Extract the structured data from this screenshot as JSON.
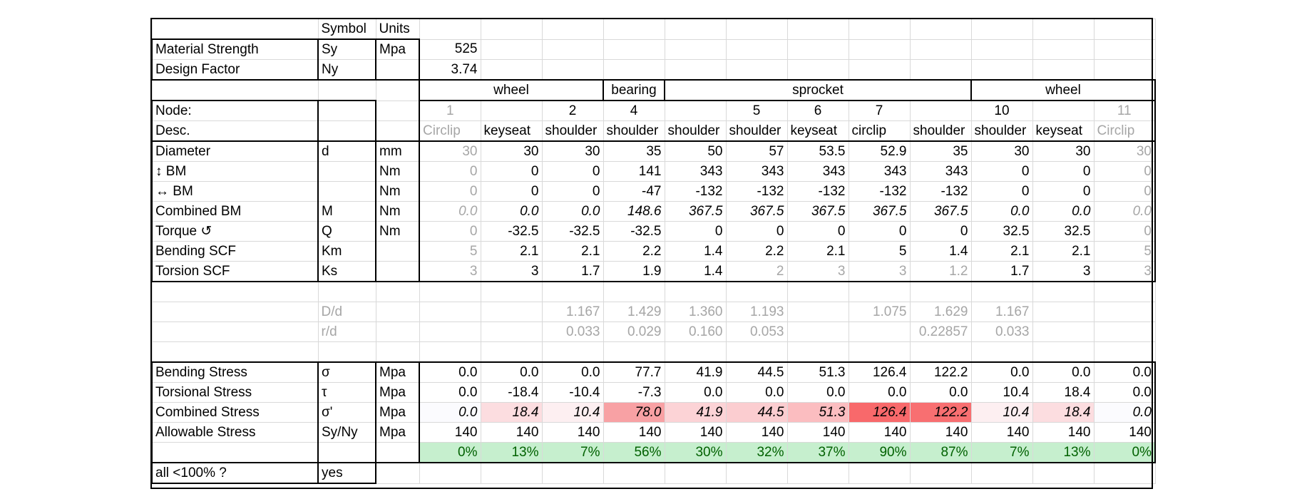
{
  "header": {
    "symbol": "Symbol",
    "units": "Units"
  },
  "material_strength": {
    "label": "Material Strength",
    "symbol": "Sy",
    "units": "Mpa",
    "value": "525"
  },
  "design_factor": {
    "label": "Design Factor",
    "symbol": "Ny",
    "value": "3.74"
  },
  "groups": [
    {
      "label": "wheel",
      "span": 3
    },
    {
      "label": "bearing",
      "span": 1
    },
    {
      "label": "sprocket",
      "span": 5
    },
    {
      "label": "wheel",
      "span": 3
    }
  ],
  "node_label": "Node:",
  "desc_label": "Desc.",
  "nodes": [
    "1",
    "",
    "2",
    "4",
    "",
    "5",
    "6",
    "7",
    "",
    "10",
    "",
    "11"
  ],
  "desc": [
    "Circlip",
    "keyseat",
    "shoulder",
    "shoulder",
    "shoulder",
    "shoulder",
    "keyseat",
    "circlip",
    "shoulder",
    "shoulder",
    "keyseat",
    "Circlip"
  ],
  "rows": [
    {
      "label": "Diameter",
      "symbol": "d",
      "units": "mm",
      "values": [
        "30",
        "30",
        "30",
        "35",
        "50",
        "57",
        "53.5",
        "52.9",
        "35",
        "30",
        "30",
        "30"
      ]
    },
    {
      "label": "↕ BM",
      "symbol": "",
      "units": "Nm",
      "values": [
        "0",
        "0",
        "0",
        "141",
        "343",
        "343",
        "343",
        "343",
        "343",
        "0",
        "0",
        "0"
      ]
    },
    {
      "label": "↔ BM",
      "symbol": "",
      "units": "Nm",
      "values": [
        "0",
        "0",
        "0",
        "-47",
        "-132",
        "-132",
        "-132",
        "-132",
        "-132",
        "0",
        "0",
        "0"
      ]
    },
    {
      "label": "Combined BM",
      "symbol": "M",
      "units": "Nm",
      "values": [
        "0.0",
        "0.0",
        "0.0",
        "148.6",
        "367.5",
        "367.5",
        "367.5",
        "367.5",
        "367.5",
        "0.0",
        "0.0",
        "0.0"
      ]
    },
    {
      "label": "Torque ↺",
      "symbol": "Q",
      "units": "Nm",
      "values": [
        "0",
        "-32.5",
        "-32.5",
        "-32.5",
        "0",
        "0",
        "0",
        "0",
        "0",
        "32.5",
        "32.5",
        "0"
      ]
    },
    {
      "label": "Bending SCF",
      "symbol": "Km",
      "units": "",
      "values": [
        "5",
        "2.1",
        "2.1",
        "2.2",
        "1.4",
        "2.2",
        "2.1",
        "5",
        "1.4",
        "2.1",
        "2.1",
        "5"
      ]
    },
    {
      "label": "Torsion SCF",
      "symbol": "Ks",
      "units": "",
      "values": [
        "3",
        "3",
        "1.7",
        "1.9",
        "1.4",
        "2",
        "3",
        "3",
        "1.2",
        "1.7",
        "3",
        "3"
      ]
    }
  ],
  "ratios": [
    {
      "symbol": "D/d",
      "values": [
        "",
        "",
        "1.167",
        "1.429",
        "1.360",
        "1.193",
        "",
        "1.075",
        "1.629",
        "1.167",
        "",
        ""
      ]
    },
    {
      "symbol": "r/d",
      "values": [
        "",
        "",
        "0.033",
        "0.029",
        "0.160",
        "0.053",
        "",
        "",
        "0.22857",
        "0.033",
        "",
        ""
      ]
    }
  ],
  "stress_rows": [
    {
      "label": "Bending Stress",
      "symbol": "σ",
      "units": "Mpa",
      "values": [
        "0.0",
        "0.0",
        "0.0",
        "77.7",
        "41.9",
        "44.5",
        "51.3",
        "126.4",
        "122.2",
        "0.0",
        "0.0",
        "0.0"
      ]
    },
    {
      "label": "Torsional Stress",
      "symbol": "τ",
      "units": "Mpa",
      "values": [
        "0.0",
        "-18.4",
        "-10.4",
        "-7.3",
        "0.0",
        "0.0",
        "0.0",
        "0.0",
        "0.0",
        "10.4",
        "18.4",
        "0.0"
      ]
    },
    {
      "label": "Combined Stress",
      "symbol": "σ'",
      "units": "Mpa",
      "values": [
        "0.0",
        "18.4",
        "10.4",
        "78.0",
        "41.9",
        "44.5",
        "51.3",
        "126.4",
        "122.2",
        "10.4",
        "18.4",
        "0.0"
      ]
    },
    {
      "label": "Allowable Stress",
      "symbol": "Sy/Ny",
      "units": "Mpa",
      "values": [
        "140",
        "140",
        "140",
        "140",
        "140",
        "140",
        "140",
        "140",
        "140",
        "140",
        "140",
        "140"
      ]
    }
  ],
  "percent": [
    "0%",
    "13%",
    "7%",
    "56%",
    "30%",
    "32%",
    "37%",
    "90%",
    "87%",
    "7%",
    "13%",
    "0%"
  ],
  "heat_colors": [
    "#fbfbfe",
    "#fcdde0",
    "#fdeff1",
    "#f8a1a4",
    "#fcd3d6",
    "#fbcdd0",
    "#fbbdc0",
    "#f8696b",
    "#f86f71",
    "#fdeff1",
    "#fcdde0",
    "#fbfbfe"
  ],
  "all_check": {
    "label": "all <100% ?",
    "value": "yes"
  }
}
